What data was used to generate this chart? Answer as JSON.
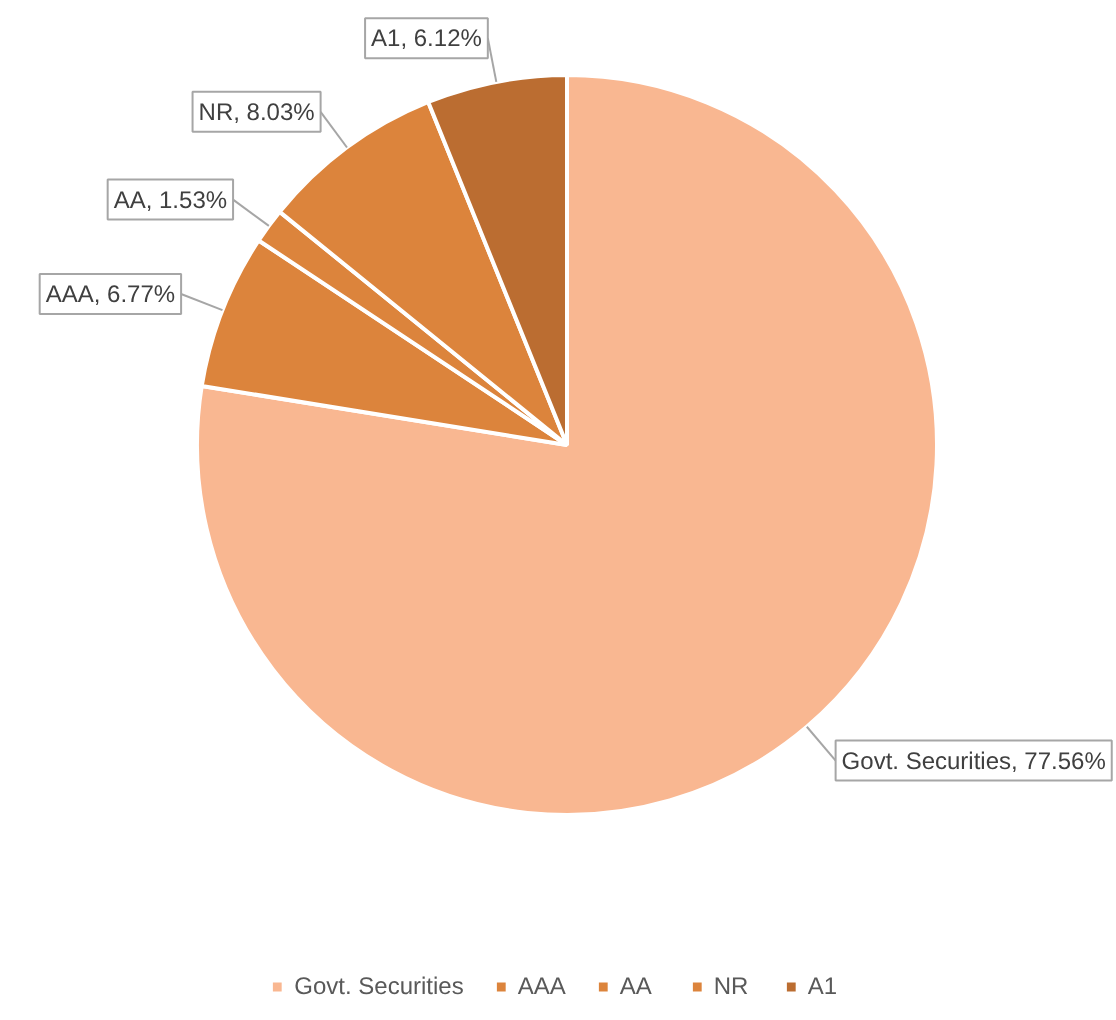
{
  "chart_data": {
    "type": "pie",
    "categories": [
      "Govt. Securities",
      "AAA",
      "AA",
      "NR",
      "A1"
    ],
    "values": [
      77.56,
      6.77,
      1.53,
      8.03,
      6.12
    ],
    "colors": [
      "#f9b791",
      "#dc843c",
      "#dc843c",
      "#dc843c",
      "#bb6d31"
    ],
    "value_labels": [
      "Govt. Securities, 77.56%",
      "AAA, 6.77%",
      "AA, 1.53%",
      "NR, 8.03%",
      "A1, 6.12%"
    ],
    "legend": "bottom"
  }
}
